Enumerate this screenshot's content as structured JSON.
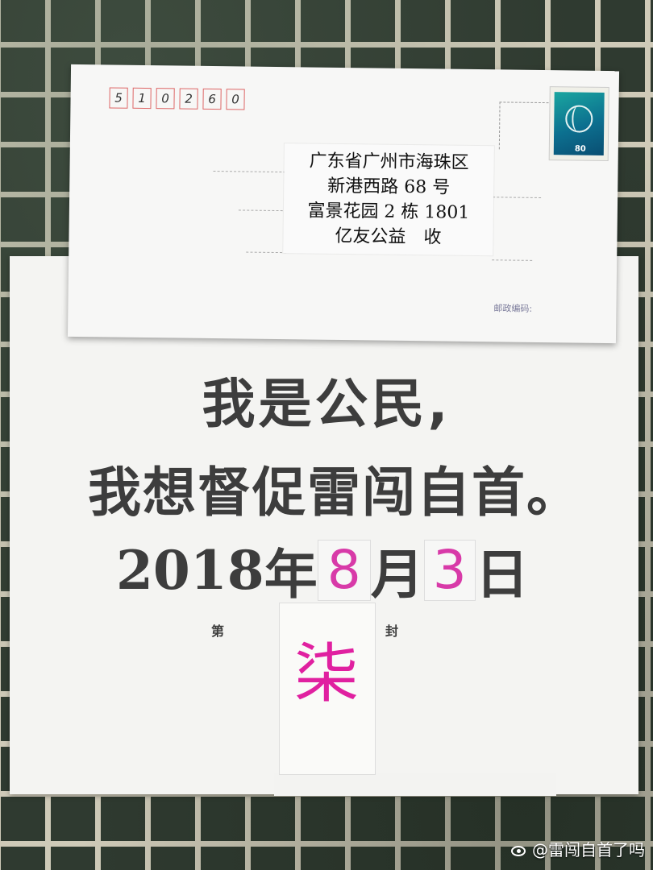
{
  "envelope": {
    "zip_digits": [
      "5",
      "1",
      "0",
      "2",
      "6",
      "0"
    ],
    "address_lines": [
      "广东省广州市海珠区",
      "新港西路 68 号",
      "富景花园 2 栋 1801",
      "亿友公益　收"
    ],
    "postcode_label": "邮政编码:",
    "stamp_value": "80"
  },
  "letter": {
    "line1": "我是公民,",
    "line2": "我想督促雷闯自首。",
    "date_year": "2018 ",
    "date_year_unit": "年",
    "date_month": "8",
    "date_month_unit": "月",
    "date_day": "3",
    "date_day_unit": "日",
    "seq_prefix": "第",
    "seq_number": "柒",
    "seq_suffix": "封"
  },
  "watermark": {
    "text": "@雷闯自首了吗"
  },
  "colors": {
    "handwriting": "#d83aa8",
    "print": "#3d3d3d",
    "zip_box": "#dd6666"
  }
}
